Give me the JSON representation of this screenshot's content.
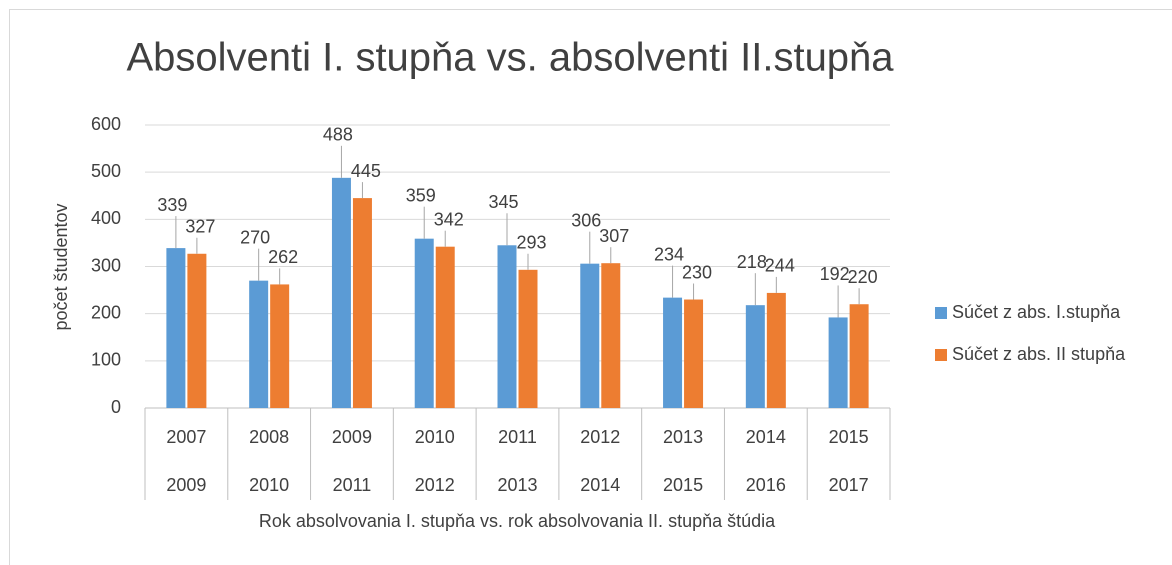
{
  "chart_data": {
    "type": "bar",
    "title": "Absolventi I. stupňa vs. absolventi II.stupňa",
    "y_label": "počet študentov",
    "x_label": "Rok absolvovania I. stupňa vs. rok absolvovania II. stupňa štúdia",
    "categories": [
      [
        "2007",
        "2009"
      ],
      [
        "2008",
        "2010"
      ],
      [
        "2009",
        "2011"
      ],
      [
        "2010",
        "2012"
      ],
      [
        "2011",
        "2013"
      ],
      [
        "2012",
        "2014"
      ],
      [
        "2013",
        "2015"
      ],
      [
        "2014",
        "2016"
      ],
      [
        "2015",
        "2017"
      ]
    ],
    "series": [
      {
        "name": "Súčet z abs. I.stupňa",
        "color": "#5b9bd5",
        "values": [
          339,
          270,
          488,
          359,
          345,
          306,
          234,
          218,
          192
        ]
      },
      {
        "name": "Súčet z abs. II stupňa",
        "color": "#ed7d31",
        "values": [
          327,
          262,
          445,
          342,
          293,
          307,
          230,
          244,
          220
        ]
      }
    ],
    "ylim": [
      0,
      600
    ],
    "yticks": [
      0,
      100,
      200,
      300,
      400,
      500,
      600
    ],
    "grid": true,
    "legend": "right"
  }
}
